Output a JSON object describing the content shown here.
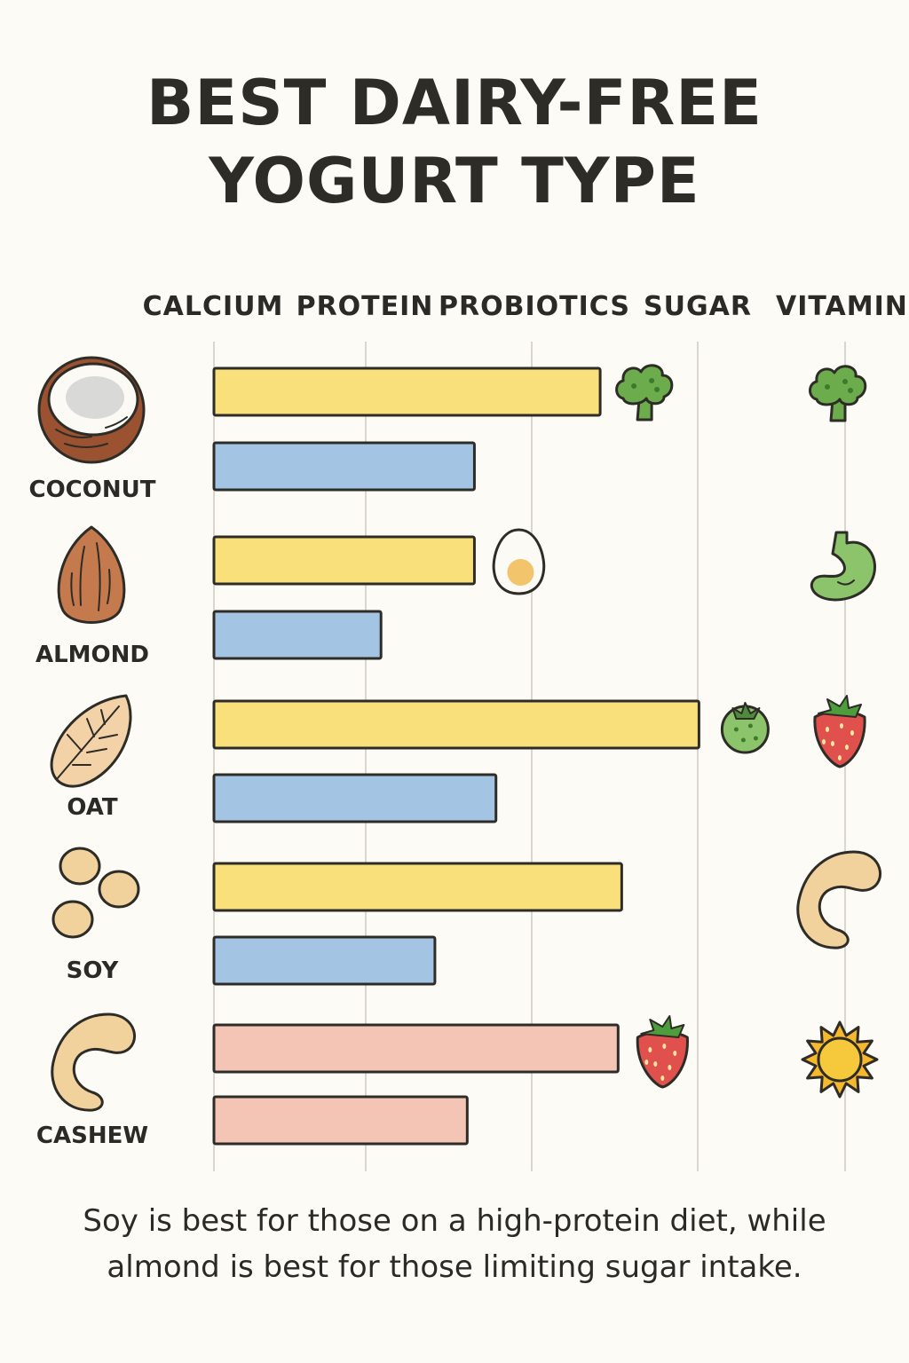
{
  "title_lines": [
    "BEST DAIRY-FREE",
    "YOGURT TYPE"
  ],
  "caption_lines": [
    "Soy is best for those on a high-protein diet, while",
    "almond is best for those limiting sugar intake."
  ],
  "colors": {
    "yellow_bar": "#fae07a",
    "blue_bar": "#a4c4e4",
    "pink_bar": "#f4c4b4",
    "outline": "#2e2c27",
    "gridline": "#d8d6cf"
  },
  "chart_data": {
    "type": "bar",
    "orientation": "horizontal",
    "columns": [
      "CALCIUM",
      "PROTEIN",
      "PROBIOTICS",
      "SUGAR",
      "VITAMIN D"
    ],
    "categories": [
      "COCONUT",
      "ALMOND",
      "OAT",
      "SOY",
      "CASHEW"
    ],
    "category_icons": [
      "coconut-icon",
      "almond-icon",
      "oat-grain-icon",
      "soybeans-icon",
      "cashew-icon"
    ],
    "series": [
      {
        "values": [
          2.15,
          1.45,
          2.7,
          2.27,
          2.25
        ]
      },
      {
        "values": [
          1.45,
          0.93,
          1.57,
          1.23,
          1.41
        ]
      }
    ],
    "bar_colors": [
      "yellow",
      "yellow",
      "yellow",
      "yellow",
      "pink"
    ],
    "second_bar_colors": [
      "blue",
      "blue",
      "blue",
      "blue",
      "pink"
    ],
    "ylim": [
      0,
      3.8
    ],
    "grid": true,
    "mid_icons": [
      "broccoli-icon",
      "egg-icon",
      "green-berry-icon",
      null,
      "strawberry-icon"
    ],
    "right_icons": [
      "broccoli-icon",
      "stomach-icon",
      "strawberry-icon",
      "cashew-icon",
      "sun-icon"
    ]
  }
}
